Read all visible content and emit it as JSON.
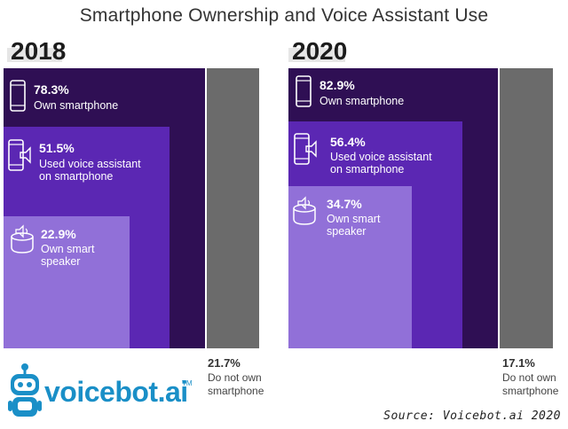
{
  "title": "Smartphone Ownership and Voice Assistant Use",
  "source": "Source: Voicebot.ai 2020",
  "logo": {
    "text": "voicebot.ai",
    "trademark": "TM",
    "icon": "robot-mascot-icon"
  },
  "colors": {
    "own_smartphone": "#2f0f54",
    "used_voice_assistant": "#5b27b3",
    "own_smart_speaker": "#9170d8",
    "do_not_own": "#6b6b6b"
  },
  "chart_data": [
    {
      "type": "nested-area",
      "year": "2018",
      "segments": [
        {
          "name": "Own smartphone",
          "value": 78.3,
          "value_label": "78.3%",
          "icon": "smartphone-icon"
        },
        {
          "name": "Used voice assistant on smartphone",
          "value": 51.5,
          "value_label": "51.5%",
          "label_lines": [
            "Used voice assistant",
            "on smartphone"
          ],
          "icon": "smartphone-voice-icon"
        },
        {
          "name": "Own smart speaker",
          "value": 22.9,
          "value_label": "22.9%",
          "label_lines": [
            "Own smart",
            "speaker"
          ],
          "icon": "smart-speaker-icon"
        }
      ],
      "remainder": {
        "name": "Do not own smartphone",
        "value": 21.7,
        "value_label": "21.7%",
        "label_lines": [
          "Do not own",
          "smartphone"
        ]
      }
    },
    {
      "type": "nested-area",
      "year": "2020",
      "segments": [
        {
          "name": "Own smartphone",
          "value": 82.9,
          "value_label": "82.9%",
          "icon": "smartphone-icon"
        },
        {
          "name": "Used voice assistant on smartphone",
          "value": 56.4,
          "value_label": "56.4%",
          "label_lines": [
            "Used voice assistant",
            "on smartphone"
          ],
          "icon": "smartphone-voice-icon"
        },
        {
          "name": "Own smart speaker",
          "value": 34.7,
          "value_label": "34.7%",
          "label_lines": [
            "Own smart",
            "speaker"
          ],
          "icon": "smart-speaker-icon"
        }
      ],
      "remainder": {
        "name": "Do not own smartphone",
        "value": 17.1,
        "value_label": "17.1%",
        "label_lines": [
          "Do not own",
          "smartphone"
        ]
      }
    }
  ]
}
